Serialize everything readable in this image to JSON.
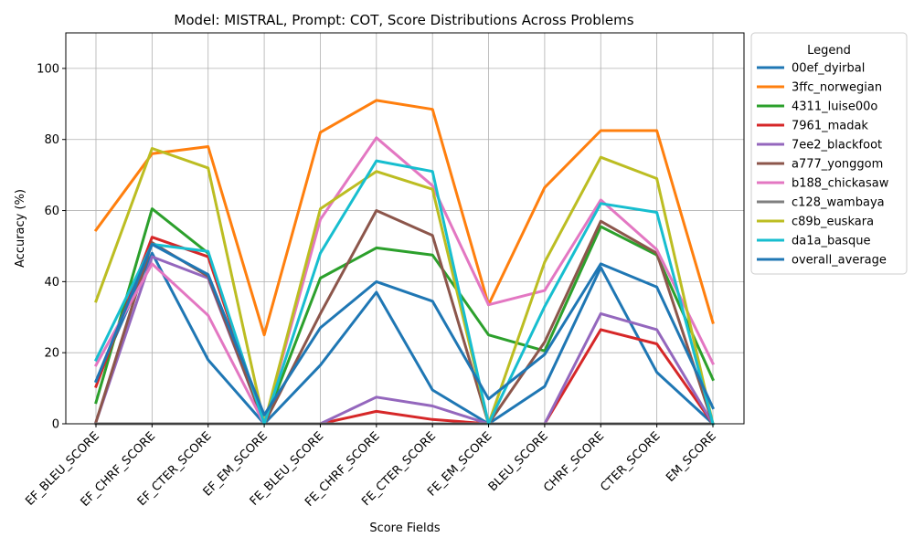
{
  "chart_data": {
    "type": "line",
    "title": "Model: MISTRAL, Prompt: COT, Score Distributions Across Problems",
    "xlabel": "Score Fields",
    "ylabel": "Accuracy (%)",
    "ylim": [
      0,
      110
    ],
    "yticks": [
      0,
      20,
      40,
      60,
      80,
      100
    ],
    "grid": true,
    "legend_title": "Legend",
    "legend_position": "outside-right",
    "categories": [
      "EF_BLEU_SCORE",
      "EF_CHRF_SCORE",
      "EF_CTER_SCORE",
      "EF_EM_SCORE",
      "FE_BLEU_SCORE",
      "FE_CHRF_SCORE",
      "FE_CTER_SCORE",
      "FE_EM_SCORE",
      "BLEU_SCORE",
      "CHRF_SCORE",
      "CTER_SCORE",
      "EM_SCORE"
    ],
    "series": [
      {
        "name": "00ef_dyirbal",
        "color": "#1f77b4",
        "values": [
          12,
          48,
          18,
          0,
          16.5,
          37,
          9.5,
          0,
          10.5,
          44,
          14.5,
          0
        ]
      },
      {
        "name": "3ffc_norwegian",
        "color": "#ff7f0e",
        "values": [
          54.5,
          76,
          78,
          25,
          82,
          91,
          88.5,
          33.5,
          66.5,
          82.5,
          82.5,
          28.5
        ]
      },
      {
        "name": "4311_luise00o",
        "color": "#2ca02c",
        "values": [
          6,
          60.5,
          48,
          0,
          41,
          49.5,
          47.5,
          25,
          20.5,
          55.5,
          47.5,
          12.5
        ]
      },
      {
        "name": "7961_madak",
        "color": "#d62728",
        "values": [
          10.5,
          52.5,
          47,
          0,
          0,
          3.5,
          1.2,
          0,
          0,
          26.5,
          22.5,
          0
        ]
      },
      {
        "name": "7ee2_blackfoot",
        "color": "#9467bd",
        "values": [
          0.5,
          47,
          41,
          0,
          0,
          7.5,
          5,
          0,
          0,
          31,
          26.5,
          0
        ]
      },
      {
        "name": "a777_yonggom",
        "color": "#8c564b",
        "values": [
          0.5,
          51,
          41.5,
          0,
          31,
          60,
          53,
          0,
          23,
          57,
          48,
          0
        ]
      },
      {
        "name": "b188_chickasaw",
        "color": "#e377c2",
        "values": [
          16.5,
          45,
          30.5,
          0,
          57.5,
          80.5,
          67,
          33.5,
          37.5,
          63,
          49,
          17
        ]
      },
      {
        "name": "c128_wambaya",
        "color": "#7f7f7f",
        "values": [
          0,
          0,
          0,
          0,
          0,
          0,
          0,
          0,
          0,
          0,
          0,
          0
        ]
      },
      {
        "name": "c89b_euskara",
        "color": "#bcbd22",
        "values": [
          34.5,
          77.5,
          72,
          0,
          60.5,
          71,
          66,
          0,
          45.5,
          75,
          69,
          0
        ]
      },
      {
        "name": "da1a_basque",
        "color": "#17becf",
        "values": [
          18,
          50.5,
          48.5,
          0,
          48,
          74,
          71,
          0,
          33,
          62,
          59.5,
          0
        ]
      },
      {
        "name": "overall_average",
        "color": "#1f77b4",
        "values": [
          12,
          50.5,
          42,
          2.5,
          27,
          40,
          34.5,
          7,
          19.5,
          45,
          38.5,
          4.5
        ]
      }
    ]
  }
}
